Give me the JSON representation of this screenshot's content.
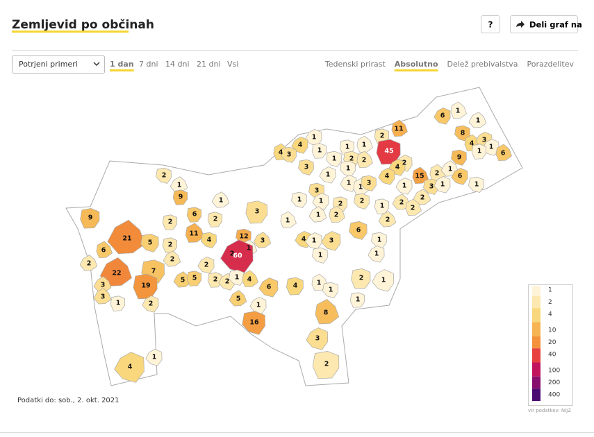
{
  "header": {
    "title": "Zemljevid po občinah",
    "buttons": [
      "?",
      "Deli graf na"
    ]
  },
  "controls": {
    "dropdown": "Potrjeni primeri",
    "periods": [
      "1 dan",
      "7 dni",
      "14 dni",
      "21 dni",
      "Vsi"
    ],
    "active_period": 0,
    "metrics": [
      "Tedenski prirast",
      "Absolutno",
      "Delež prebivalstva",
      "Porazdelitev"
    ],
    "active_metric": 1
  },
  "chart_data": {
    "type": "choropleth",
    "values": [
      6,
      1,
      1,
      11,
      2,
      8,
      1,
      4,
      4,
      3,
      1,
      1,
      1,
      45,
      4,
      3,
      1,
      6,
      1,
      9,
      2,
      4,
      3,
      2,
      2,
      1,
      1,
      1,
      4,
      15,
      2,
      1,
      6,
      2,
      1,
      9,
      3,
      1,
      1,
      3,
      1,
      3,
      1,
      1,
      1,
      3,
      1,
      1,
      2,
      2,
      1,
      2,
      2,
      2,
      9,
      6,
      2,
      2,
      1,
      1,
      2,
      2,
      21,
      11,
      4,
      12,
      3,
      1,
      2,
      5,
      2,
      4,
      1,
      3,
      6,
      1,
      6,
      60,
      1,
      2,
      2,
      1,
      7,
      2,
      22,
      5,
      5,
      2,
      2,
      1,
      4,
      6,
      4,
      2,
      1,
      3,
      19,
      1,
      1,
      3,
      1,
      2,
      5,
      1,
      1,
      8,
      16,
      3,
      1,
      4,
      2
    ],
    "legend": {
      "ticks": [
        1,
        2,
        4,
        10,
        20,
        40,
        100,
        200,
        400
      ],
      "colors": [
        "#fff4d8",
        "#fde8b0",
        "#f9d77c",
        "#f6b552",
        "#f3923a",
        "#e8403f",
        "#c1145c",
        "#880e6e",
        "#4a0a72"
      ],
      "log": true
    },
    "footnote": "Podatki do: sob., 2. okt. 2021",
    "source": "vir podatkov: NIJZ"
  }
}
